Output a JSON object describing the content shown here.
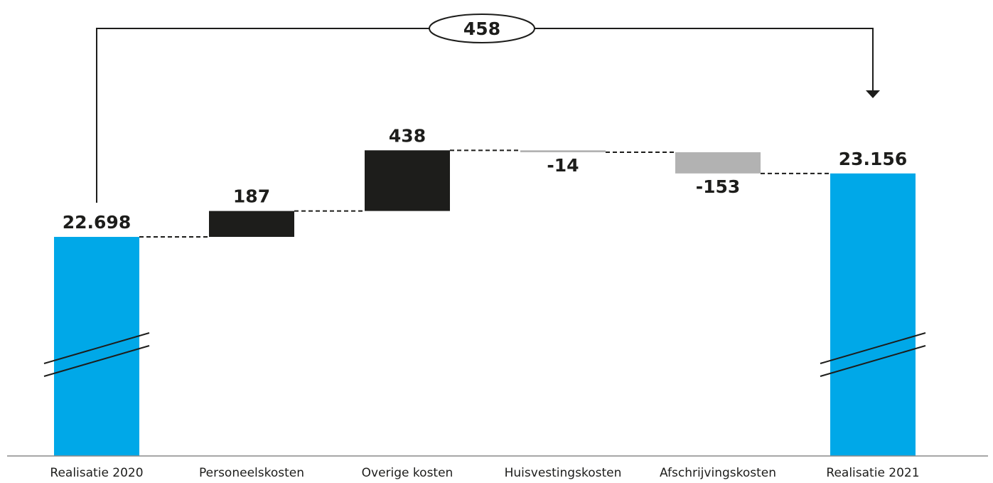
{
  "chart_data": {
    "type": "waterfall",
    "categories": [
      "Realisatie 2020",
      "Personeelskosten",
      "Overige kosten",
      "Huisvestingskosten",
      "Afschrijvingskosten",
      "Realisatie 2021"
    ],
    "values": [
      22698,
      187,
      438,
      -14,
      -153,
      23156
    ],
    "value_labels": [
      "22.698",
      "187",
      "438",
      "-14",
      "-153",
      "23.156"
    ],
    "bar_kinds": [
      "total",
      "increase",
      "increase",
      "decrease",
      "decrease",
      "total"
    ],
    "difference": {
      "value": 458,
      "label": "458",
      "from": "Realisatie 2020",
      "to": "Realisatie 2021"
    },
    "axis_break": true,
    "grid": false,
    "colors": {
      "total": "#00a8e8",
      "increase": "#1d1d1b",
      "decrease": "#b2b2b2",
      "connector": "#1d1d1b",
      "axis": "#8a8a8a"
    }
  }
}
